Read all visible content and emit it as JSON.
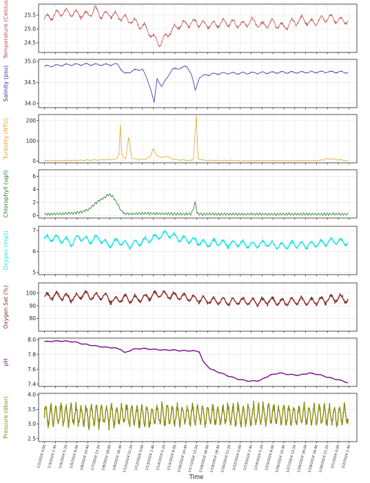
{
  "chart_data": {
    "type": "line",
    "layout": "stacked-subplots",
    "xlabel": "Time",
    "shared_x_ticks": [
      "1/2/2024 0:00",
      "1/3/2024 2:40",
      "1/4/2024 5:20",
      "1/5/2024 8:00",
      "1/6/2024 10:40",
      "1/7/2024 13:20",
      "1/8/2024 16:00",
      "1/9/2024 18:40",
      "1/10/2024 21:20",
      "1/12/2024 0:00",
      "1/13/2024 2:40",
      "1/14/2024 5:20",
      "1/15/2024 8:00",
      "1/16/2024 10:40",
      "1/17/2024 13:20",
      "1/18/2024 16:00",
      "1/19/2024 18:40",
      "1/20/2024 21:20",
      "1/22/2024 0:00",
      "1/23/2024 2:40",
      "1/24/2024 5:20",
      "1/25/2024 8:00",
      "1/26/2024 10:40",
      "1/27/2024 13:20",
      "1/28/2024 16:00",
      "1/29/2024 18:40",
      "1/30/2024 21:20",
      "2/1/2024 0:00",
      "2/2/2024 2:40"
    ],
    "x_days": [
      0,
      1.111,
      2.222,
      3.333,
      4.444,
      5.556,
      6.667,
      7.778,
      8.889,
      10,
      11.111,
      12.222,
      13.333,
      14.444,
      15.556,
      16.667,
      17.778,
      18.889,
      20,
      21.111,
      22.222,
      23.333,
      24.444,
      25.556,
      26.667,
      27.778,
      28.889,
      30,
      31.111
    ],
    "xlim_days": [
      -0.6,
      31.9
    ],
    "grid": true,
    "series": [
      {
        "name": "Temperature",
        "ylabel": "Temperature (Celsius)",
        "color": "#c0504d",
        "ylim": [
          24.15,
          25.9
        ],
        "yticks": [
          24.5,
          25.0,
          25.5
        ],
        "ytick_labels": [
          "24.5",
          "25.0",
          "25.5"
        ],
        "x": [
          0,
          1.2,
          2.2,
          3.3,
          4.4,
          5.2,
          5.8,
          6.6,
          7.6,
          8.5,
          9.2,
          10.2,
          10.8,
          11.3,
          11.9,
          12.4,
          13.0,
          13.8,
          14.6,
          15.5,
          16.4,
          17.4,
          18.4,
          19.3,
          20.2,
          21.2,
          22.2,
          23.3,
          24.4,
          25.3,
          26.4,
          27.3,
          28.3,
          29.2,
          30.2,
          31.0
        ],
        "y": [
          25.35,
          25.55,
          25.6,
          25.55,
          25.5,
          25.7,
          25.5,
          25.55,
          25.45,
          25.35,
          25.25,
          25.05,
          24.85,
          24.6,
          24.5,
          24.75,
          24.95,
          25.15,
          25.2,
          25.25,
          25.15,
          25.15,
          25.25,
          25.2,
          25.15,
          25.3,
          25.1,
          25.25,
          25.05,
          25.25,
          25.35,
          25.2,
          25.35,
          25.4,
          25.3,
          25.3
        ],
        "amp": 0.12,
        "period": 1.0
      },
      {
        "name": "Salinity",
        "ylabel": "Salinity (psu)",
        "color": "#2b2fa0",
        "ylim": [
          33.9,
          35.05
        ],
        "yticks": [
          34.0,
          34.5,
          35.0
        ],
        "ytick_labels": [
          "34.0",
          "34.5",
          "35.0"
        ],
        "x": [
          0,
          2,
          4,
          6,
          7.5,
          8.2,
          9,
          10,
          10.8,
          11.2,
          11.5,
          12,
          12.6,
          13,
          14,
          14.6,
          15,
          15.4,
          15.8,
          16.5,
          18,
          20,
          22,
          24,
          26,
          28,
          30,
          31
        ],
        "y": [
          34.88,
          34.92,
          34.93,
          34.92,
          34.93,
          34.7,
          34.78,
          34.82,
          34.4,
          34.0,
          34.6,
          34.4,
          34.65,
          34.8,
          34.85,
          34.88,
          34.7,
          34.3,
          34.62,
          34.68,
          34.72,
          34.72,
          34.73,
          34.74,
          34.74,
          34.75,
          34.75,
          34.74
        ],
        "amp": 0.02,
        "period": 1.0
      },
      {
        "name": "Turbidity",
        "ylabel": "Turbidity (NTU)",
        "color": "#e6a323",
        "ylim": [
          -8,
          230
        ],
        "yticks": [
          0,
          100,
          200
        ],
        "ytick_labels": [
          "0",
          "100",
          "200"
        ],
        "x": [
          0,
          3,
          5,
          6.5,
          7.3,
          7.6,
          7.75,
          7.9,
          8.3,
          8.6,
          8.9,
          9.5,
          10.2,
          10.8,
          11.1,
          11.4,
          12,
          12.5,
          13,
          14,
          15,
          15.2,
          15.5,
          15.7,
          16.2,
          17,
          20,
          24,
          28,
          29,
          31
        ],
        "y": [
          3,
          4,
          6,
          8,
          10,
          30,
          178,
          30,
          12,
          120,
          15,
          8,
          10,
          20,
          65,
          30,
          18,
          25,
          12,
          6,
          4,
          10,
          222,
          12,
          5,
          4,
          3,
          3,
          3,
          12,
          3
        ],
        "amp": 1.5,
        "period": 0.7
      },
      {
        "name": "Chlorophyll",
        "ylabel": "Chlorophyll (ug/l)",
        "color": "#1e7f1e",
        "ylim": [
          -0.4,
          7.0
        ],
        "yticks": [
          0,
          2,
          4,
          6
        ],
        "ytick_labels": [
          "0",
          "2",
          "4",
          "6"
        ],
        "x": [
          0,
          1.5,
          3,
          3.8,
          4.5,
          5,
          5.5,
          6,
          6.5,
          6.9,
          7.2,
          7.5,
          7.8,
          8.1,
          8.4,
          9,
          10,
          11,
          12,
          13,
          14,
          15,
          15.4,
          15.6,
          16,
          18,
          22,
          26,
          31
        ],
        "y": [
          0.2,
          0.25,
          0.35,
          0.55,
          0.9,
          1.6,
          2.2,
          2.6,
          3.2,
          3.0,
          2.4,
          1.7,
          0.8,
          0.35,
          0.25,
          0.25,
          0.3,
          0.3,
          0.25,
          0.25,
          0.2,
          0.25,
          2.0,
          0.3,
          0.2,
          0.2,
          0.2,
          0.2,
          0.2
        ],
        "amp": 0.15,
        "period": 0.3
      },
      {
        "name": "Oxygen",
        "ylabel": "Oxygen (mg/l)",
        "color": "#1ee5e5",
        "ylim": [
          4.9,
          7.2
        ],
        "yticks": [
          5,
          6,
          7
        ],
        "ytick_labels": [
          "5",
          "6",
          "7"
        ],
        "x": [
          0,
          1,
          2,
          2.8,
          3.5,
          4.5,
          5.5,
          6.5,
          7.5,
          8.5,
          9.5,
          10.5,
          11.5,
          12.5,
          13.5,
          14.5,
          15.5,
          16.5,
          17.5,
          18.5,
          19.5,
          20.5,
          21.5,
          22.5,
          23.5,
          24.5,
          25.5,
          26.5,
          27.5,
          28.5,
          29.5,
          30.5,
          31
        ],
        "y": [
          6.6,
          6.65,
          6.55,
          6.4,
          6.7,
          6.5,
          6.65,
          6.3,
          6.5,
          6.3,
          6.4,
          6.55,
          6.7,
          6.85,
          6.65,
          6.55,
          6.5,
          6.35,
          6.45,
          6.35,
          6.4,
          6.35,
          6.3,
          6.4,
          6.3,
          6.25,
          6.35,
          6.3,
          6.35,
          6.4,
          6.5,
          6.45,
          6.4
        ],
        "amp": 0.14,
        "period": 1.0
      },
      {
        "name": "Oxygen Sat",
        "ylabel": "Oxygen Sat (%)",
        "color": "#8b2e2b",
        "ylim": [
          70,
          108
        ],
        "yticks": [
          80,
          90,
          100
        ],
        "ytick_labels": [
          "80",
          "90",
          "100"
        ],
        "x": [
          0,
          1,
          2,
          3,
          4,
          5,
          6,
          7,
          8,
          9,
          10,
          11,
          12,
          13,
          14,
          15,
          16,
          17,
          18,
          19,
          20,
          21,
          22,
          23,
          24,
          25,
          26,
          27,
          28,
          29,
          30,
          31
        ],
        "y": [
          97,
          98,
          97,
          96,
          99,
          97,
          98,
          94,
          96,
          95,
          96,
          98,
          99,
          98,
          97,
          96,
          95,
          94,
          94,
          93,
          94,
          93,
          93,
          94,
          93,
          93,
          94,
          93,
          94,
          95,
          96,
          95
        ],
        "amp": 2.5,
        "period": 1.0
      },
      {
        "name": "pH",
        "ylabel": "pH",
        "color": "#7a0f8a",
        "ylim": [
          7.37,
          8.02
        ],
        "yticks": [
          7.4,
          7.6,
          7.8,
          8.0
        ],
        "ytick_labels": [
          "7.4",
          "7.6",
          "7.8",
          "8.0"
        ],
        "x": [
          0,
          1,
          2,
          3,
          4,
          5,
          6,
          7,
          7.8,
          8.2,
          9,
          10,
          11,
          12,
          13,
          14,
          15,
          15.8,
          16.2,
          17,
          18,
          19,
          20,
          21,
          22,
          23,
          24,
          25,
          26,
          27,
          28,
          29,
          30,
          31
        ],
        "y": [
          7.97,
          7.98,
          7.98,
          7.97,
          7.94,
          7.92,
          7.9,
          7.89,
          7.87,
          7.82,
          7.87,
          7.88,
          7.87,
          7.86,
          7.86,
          7.85,
          7.85,
          7.84,
          7.7,
          7.6,
          7.55,
          7.5,
          7.46,
          7.44,
          7.45,
          7.52,
          7.55,
          7.53,
          7.52,
          7.55,
          7.53,
          7.49,
          7.46,
          7.42
        ],
        "amp": 0.005,
        "period": 1.0
      },
      {
        "name": "Pressure",
        "ylabel": "Pressure (dbar)",
        "color": "#8b8b10",
        "ylim": [
          2.4,
          4.05
        ],
        "yticks": [
          2.5,
          3.0,
          3.5,
          4.0
        ],
        "ytick_labels": [
          "2.5",
          "3.0",
          "3.5",
          "4.0"
        ],
        "x": [
          0,
          31
        ],
        "y": [
          3.3,
          3.3
        ],
        "amp": 0.3,
        "period": 0.517
      }
    ]
  }
}
